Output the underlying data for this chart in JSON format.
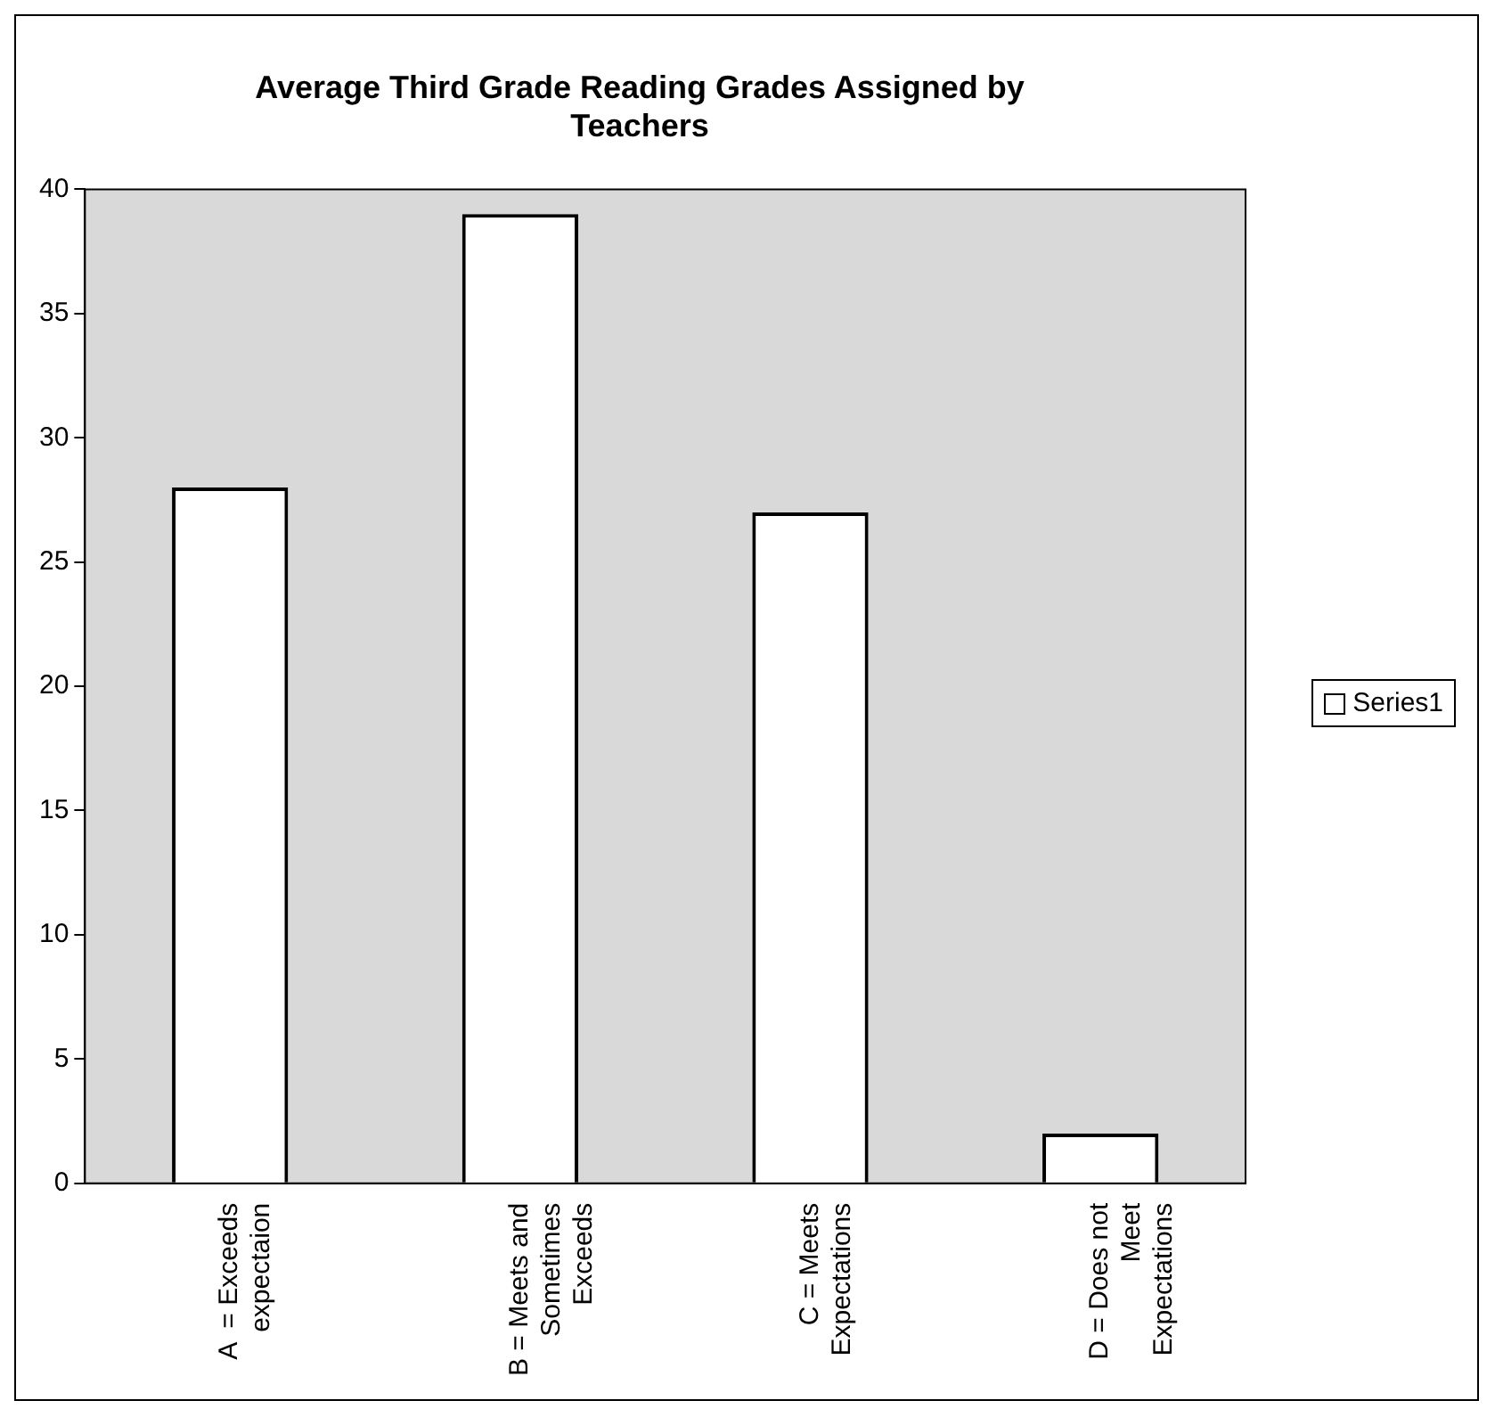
{
  "chart_data": {
    "type": "bar",
    "title": "Average Third Grade Reading Grades Assigned by Teachers",
    "categories": [
      "A  = Exceeds expectaion",
      "B = Meets and Sometimes Exceeds",
      "C = Meets Expectations",
      "D = Does not Meet Expectations"
    ],
    "series": [
      {
        "name": "Series1",
        "color": "#ffffff",
        "values": [
          28,
          39,
          27,
          2
        ]
      }
    ],
    "ylim": [
      0,
      40
    ],
    "yticks": [
      0,
      5,
      10,
      15,
      20,
      25,
      30,
      35,
      40
    ],
    "grid": false,
    "legend": "right"
  }
}
